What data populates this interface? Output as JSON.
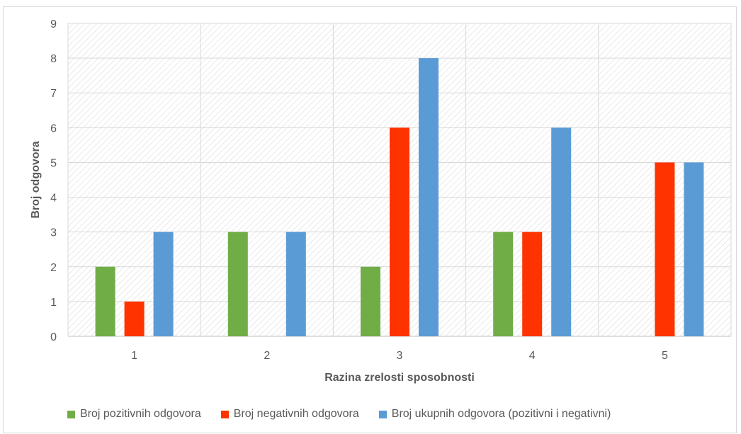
{
  "chart_data": {
    "type": "bar",
    "title": "",
    "xlabel": "Razina zrelosti sposobnosti",
    "ylabel": "Broj odgovora",
    "categories": [
      "1",
      "2",
      "3",
      "4",
      "5"
    ],
    "ylim": [
      0,
      9
    ],
    "yticks": [
      "0",
      "1",
      "2",
      "3",
      "4",
      "5",
      "6",
      "7",
      "8",
      "9"
    ],
    "grid": true,
    "legend_position": "bottom",
    "series": [
      {
        "name": "Broj pozitivnih odgovora",
        "color": "#70ad47",
        "values": [
          2,
          3,
          2,
          3,
          0
        ]
      },
      {
        "name": "Broj negativnih odgovora",
        "color": "#ff3300",
        "values": [
          1,
          0,
          6,
          3,
          5
        ]
      },
      {
        "name": "Broj ukupnih odgovora (pozitivni i negativni)",
        "color": "#5b9bd5",
        "values": [
          3,
          3,
          8,
          6,
          5
        ]
      }
    ]
  }
}
